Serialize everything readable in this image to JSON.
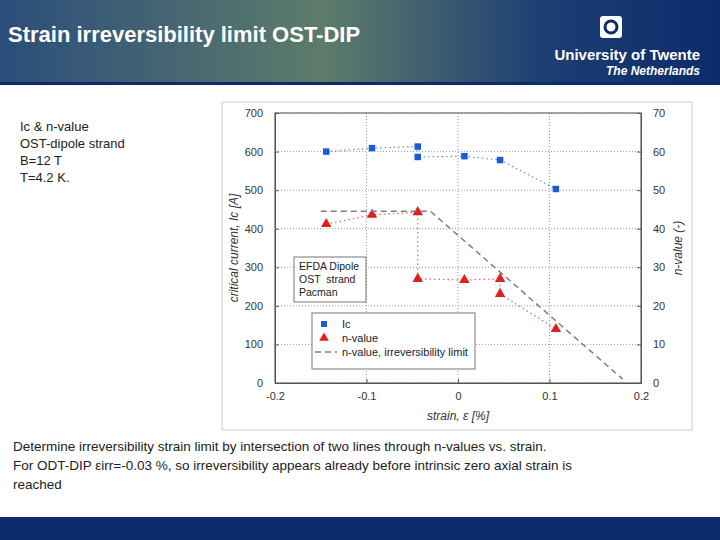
{
  "header": {
    "title": "Strain irreversibility limit OST-DIP",
    "logo": [
      "University of Twente",
      "The Netherlands"
    ]
  },
  "side_text": [
    "Ic & n-value",
    "OST-dipole strand",
    "B=12 T",
    "T=4.2 K."
  ],
  "notes": [
    "Determine irreversibility strain limit by intersection of two lines through n-values vs. strain.",
    "For ODT-DIP εirr=-0.03 %, so irreversibility appears already before intrinsic zero axial strain is",
    "reached"
  ],
  "chart_data": {
    "type": "scatter",
    "x_label": "strain, ε [%]",
    "y_label": "critical current, Ic [A]",
    "y2_label": "n-value (-)",
    "annotation": [
      "EFDA Dipole",
      "OST  strand",
      "Pacman"
    ],
    "xlim": [
      -0.2,
      0.2
    ],
    "xticks": [
      -0.2,
      -0.1,
      0,
      0.1,
      0.2
    ],
    "ylim": [
      0,
      700
    ],
    "yticks": [
      0,
      100,
      200,
      300,
      400,
      500,
      600,
      700
    ],
    "y2lim": [
      0,
      70
    ],
    "y2ticks": [
      0,
      10,
      20,
      30,
      40,
      50,
      60,
      70
    ],
    "grid": true,
    "legend": "bottom-left",
    "series": [
      {
        "name": "Ic",
        "color": "#1c5bd6",
        "marker": "square",
        "line_style": "dotted",
        "x": [
          -0.144,
          -0.094,
          -0.044,
          -0.044,
          0.007,
          0.046,
          0.107
        ],
        "values": [
          600,
          609,
          613,
          586,
          588,
          578,
          503
        ]
      },
      {
        "name": "n-value",
        "color": "#e0201c",
        "marker": "triangle",
        "line_style": "dotted",
        "axis": "y2",
        "x": [
          -0.144,
          -0.094,
          -0.044,
          -0.044,
          0.007,
          0.046,
          0.046,
          0.107
        ],
        "values": [
          41.2,
          43.6,
          44.3,
          27,
          26.7,
          27,
          23.1,
          14
        ]
      },
      {
        "name": "n-value, irreversibility limit",
        "color": "#808080",
        "marker": "none",
        "line_style": "dashed",
        "axis": "y2",
        "x": [
          -0.15,
          -0.03,
          0.18
        ],
        "values": [
          44.5,
          44.5,
          1
        ]
      }
    ]
  }
}
